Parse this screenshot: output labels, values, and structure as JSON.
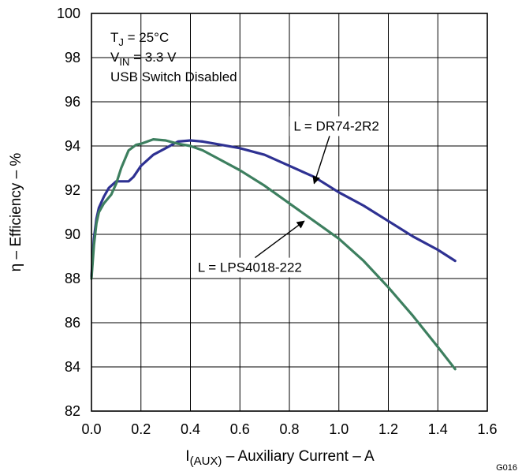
{
  "chart_data": {
    "type": "line",
    "xlabel": {
      "main": "I",
      "sub": "(AUX)",
      "rest": " – Auxiliary Current – A"
    },
    "ylabel": "η – Efficiency – %",
    "xlim": [
      0,
      1.6
    ],
    "ylim": [
      82,
      100
    ],
    "xticks": [
      0.0,
      0.2,
      0.4,
      0.6,
      0.8,
      1.0,
      1.2,
      1.4,
      1.6
    ],
    "xtick_labels": [
      "0.0",
      "0.2",
      "0.4",
      "0.6",
      "0.8",
      "1.0",
      "1.2",
      "1.4",
      "1.6"
    ],
    "yticks": [
      82,
      84,
      86,
      88,
      90,
      92,
      94,
      96,
      98,
      100
    ],
    "ytick_labels": [
      "82",
      "84",
      "86",
      "88",
      "90",
      "92",
      "94",
      "96",
      "98",
      "100"
    ],
    "grid": true,
    "conditions": [
      {
        "main": "T",
        "sub": "J",
        "rest": " = 25°C"
      },
      {
        "main": "V",
        "sub": "IN",
        "rest": " = 3.3 V"
      },
      {
        "main": "USB Switch Disabled",
        "sub": "",
        "rest": ""
      }
    ],
    "figure_code": "G016",
    "colors": {
      "DR74-2R2": "#2e3192",
      "LPS4018-222": "#3d7f5f"
    },
    "series": [
      {
        "name": "L = DR74-2R2",
        "color": "#2e3192",
        "label_at": [
          0.99,
          94.7
        ],
        "arrow_tip": [
          0.9,
          92.3
        ],
        "points": [
          [
            0.0,
            88.1
          ],
          [
            0.01,
            89.8
          ],
          [
            0.02,
            90.7
          ],
          [
            0.03,
            91.2
          ],
          [
            0.05,
            91.7
          ],
          [
            0.07,
            92.1
          ],
          [
            0.1,
            92.4
          ],
          [
            0.12,
            92.4
          ],
          [
            0.15,
            92.4
          ],
          [
            0.17,
            92.6
          ],
          [
            0.2,
            93.1
          ],
          [
            0.25,
            93.6
          ],
          [
            0.3,
            93.9
          ],
          [
            0.35,
            94.2
          ],
          [
            0.4,
            94.25
          ],
          [
            0.45,
            94.2
          ],
          [
            0.5,
            94.1
          ],
          [
            0.6,
            93.9
          ],
          [
            0.7,
            93.6
          ],
          [
            0.8,
            93.1
          ],
          [
            0.9,
            92.6
          ],
          [
            1.0,
            91.9
          ],
          [
            1.1,
            91.3
          ],
          [
            1.2,
            90.6
          ],
          [
            1.3,
            89.9
          ],
          [
            1.4,
            89.3
          ],
          [
            1.47,
            88.8
          ]
        ]
      },
      {
        "name": "L = LPS4018-222",
        "color": "#3d7f5f",
        "label_at": [
          0.64,
          88.3
        ],
        "arrow_tip": [
          0.86,
          90.6
        ],
        "points": [
          [
            0.0,
            88.0
          ],
          [
            0.01,
            89.5
          ],
          [
            0.02,
            90.5
          ],
          [
            0.03,
            91.0
          ],
          [
            0.05,
            91.4
          ],
          [
            0.08,
            91.8
          ],
          [
            0.1,
            92.3
          ],
          [
            0.12,
            93.0
          ],
          [
            0.15,
            93.8
          ],
          [
            0.18,
            94.05
          ],
          [
            0.2,
            94.1
          ],
          [
            0.25,
            94.3
          ],
          [
            0.3,
            94.25
          ],
          [
            0.35,
            94.1
          ],
          [
            0.4,
            94.0
          ],
          [
            0.45,
            93.8
          ],
          [
            0.5,
            93.5
          ],
          [
            0.6,
            92.9
          ],
          [
            0.7,
            92.2
          ],
          [
            0.8,
            91.4
          ],
          [
            0.9,
            90.6
          ],
          [
            1.0,
            89.8
          ],
          [
            1.1,
            88.8
          ],
          [
            1.2,
            87.6
          ],
          [
            1.3,
            86.3
          ],
          [
            1.4,
            84.9
          ],
          [
            1.47,
            83.9
          ]
        ]
      }
    ]
  }
}
